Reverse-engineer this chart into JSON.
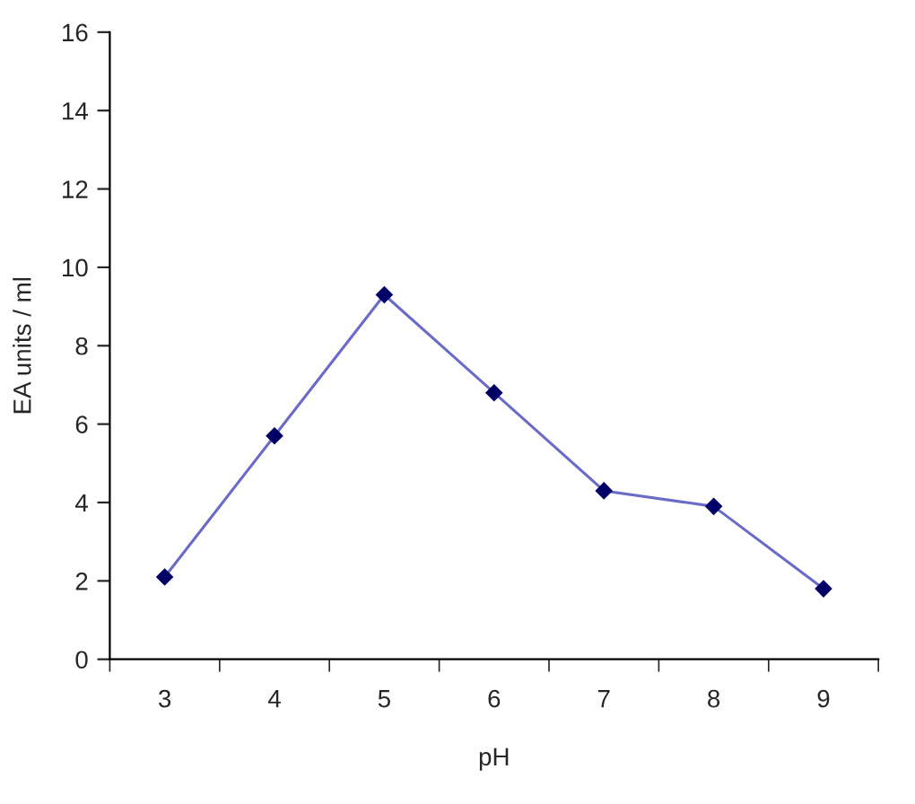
{
  "chart_data": {
    "type": "line",
    "xlabel": "pH",
    "ylabel": "EA units / ml",
    "categories": [
      "3",
      "4",
      "5",
      "6",
      "7",
      "8",
      "9"
    ],
    "series": [
      {
        "color": "#6a6ac8",
        "values": [
          2.1,
          5.7,
          9.3,
          6.8,
          4.3,
          3.9,
          1.8
        ]
      }
    ],
    "ylim": [
      0,
      16
    ],
    "yticks": [
      0,
      2,
      4,
      6,
      8,
      10,
      12,
      14,
      16
    ],
    "marker": "diamond",
    "line_style": "solid",
    "grid": false,
    "legend": false
  }
}
